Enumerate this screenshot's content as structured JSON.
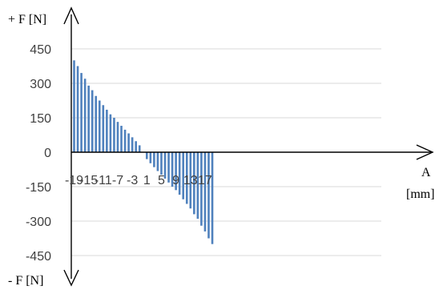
{
  "chart_data": {
    "type": "bar",
    "x": [
      -19,
      -18,
      -17,
      -16,
      -15,
      -14,
      -13,
      -12,
      -11,
      -10,
      -9,
      -8,
      -7,
      -6,
      -5,
      -4,
      -3,
      -2,
      -1,
      1,
      2,
      3,
      4,
      5,
      6,
      7,
      8,
      9,
      10,
      11,
      12,
      13,
      14,
      15,
      16,
      17,
      18,
      19
    ],
    "values": [
      400,
      375,
      345,
      320,
      290,
      270,
      245,
      225,
      205,
      185,
      165,
      150,
      132,
      115,
      98,
      82,
      65,
      48,
      30,
      -30,
      -48,
      -65,
      -82,
      -98,
      -115,
      -132,
      -150,
      -165,
      -185,
      -205,
      -225,
      -245,
      -270,
      -290,
      -320,
      -345,
      -375,
      -400
    ],
    "x_tick_labels": [
      "-19",
      "-15",
      "-11",
      "-7",
      "-3",
      "1",
      "5",
      "9",
      "13",
      "17"
    ],
    "x_tick_values": [
      -19,
      -15,
      -11,
      -7,
      -3,
      1,
      5,
      9,
      13,
      17
    ],
    "y_ticks": [
      450,
      300,
      150,
      0,
      -150,
      -300,
      -450
    ],
    "y_tick_labels": [
      "450",
      "300",
      "150",
      "0",
      "-150",
      "-300",
      "-450"
    ],
    "ylim": [
      -450,
      450
    ],
    "xlim": [
      -19,
      19
    ],
    "ylabel_top": "+ F [N]",
    "ylabel_bottom": "- F [N]",
    "xlabel_line1": "A",
    "xlabel_line2": "[mm]",
    "grid": true,
    "bar_color": "#4f81bd",
    "grid_color": "#d9d9d9"
  }
}
